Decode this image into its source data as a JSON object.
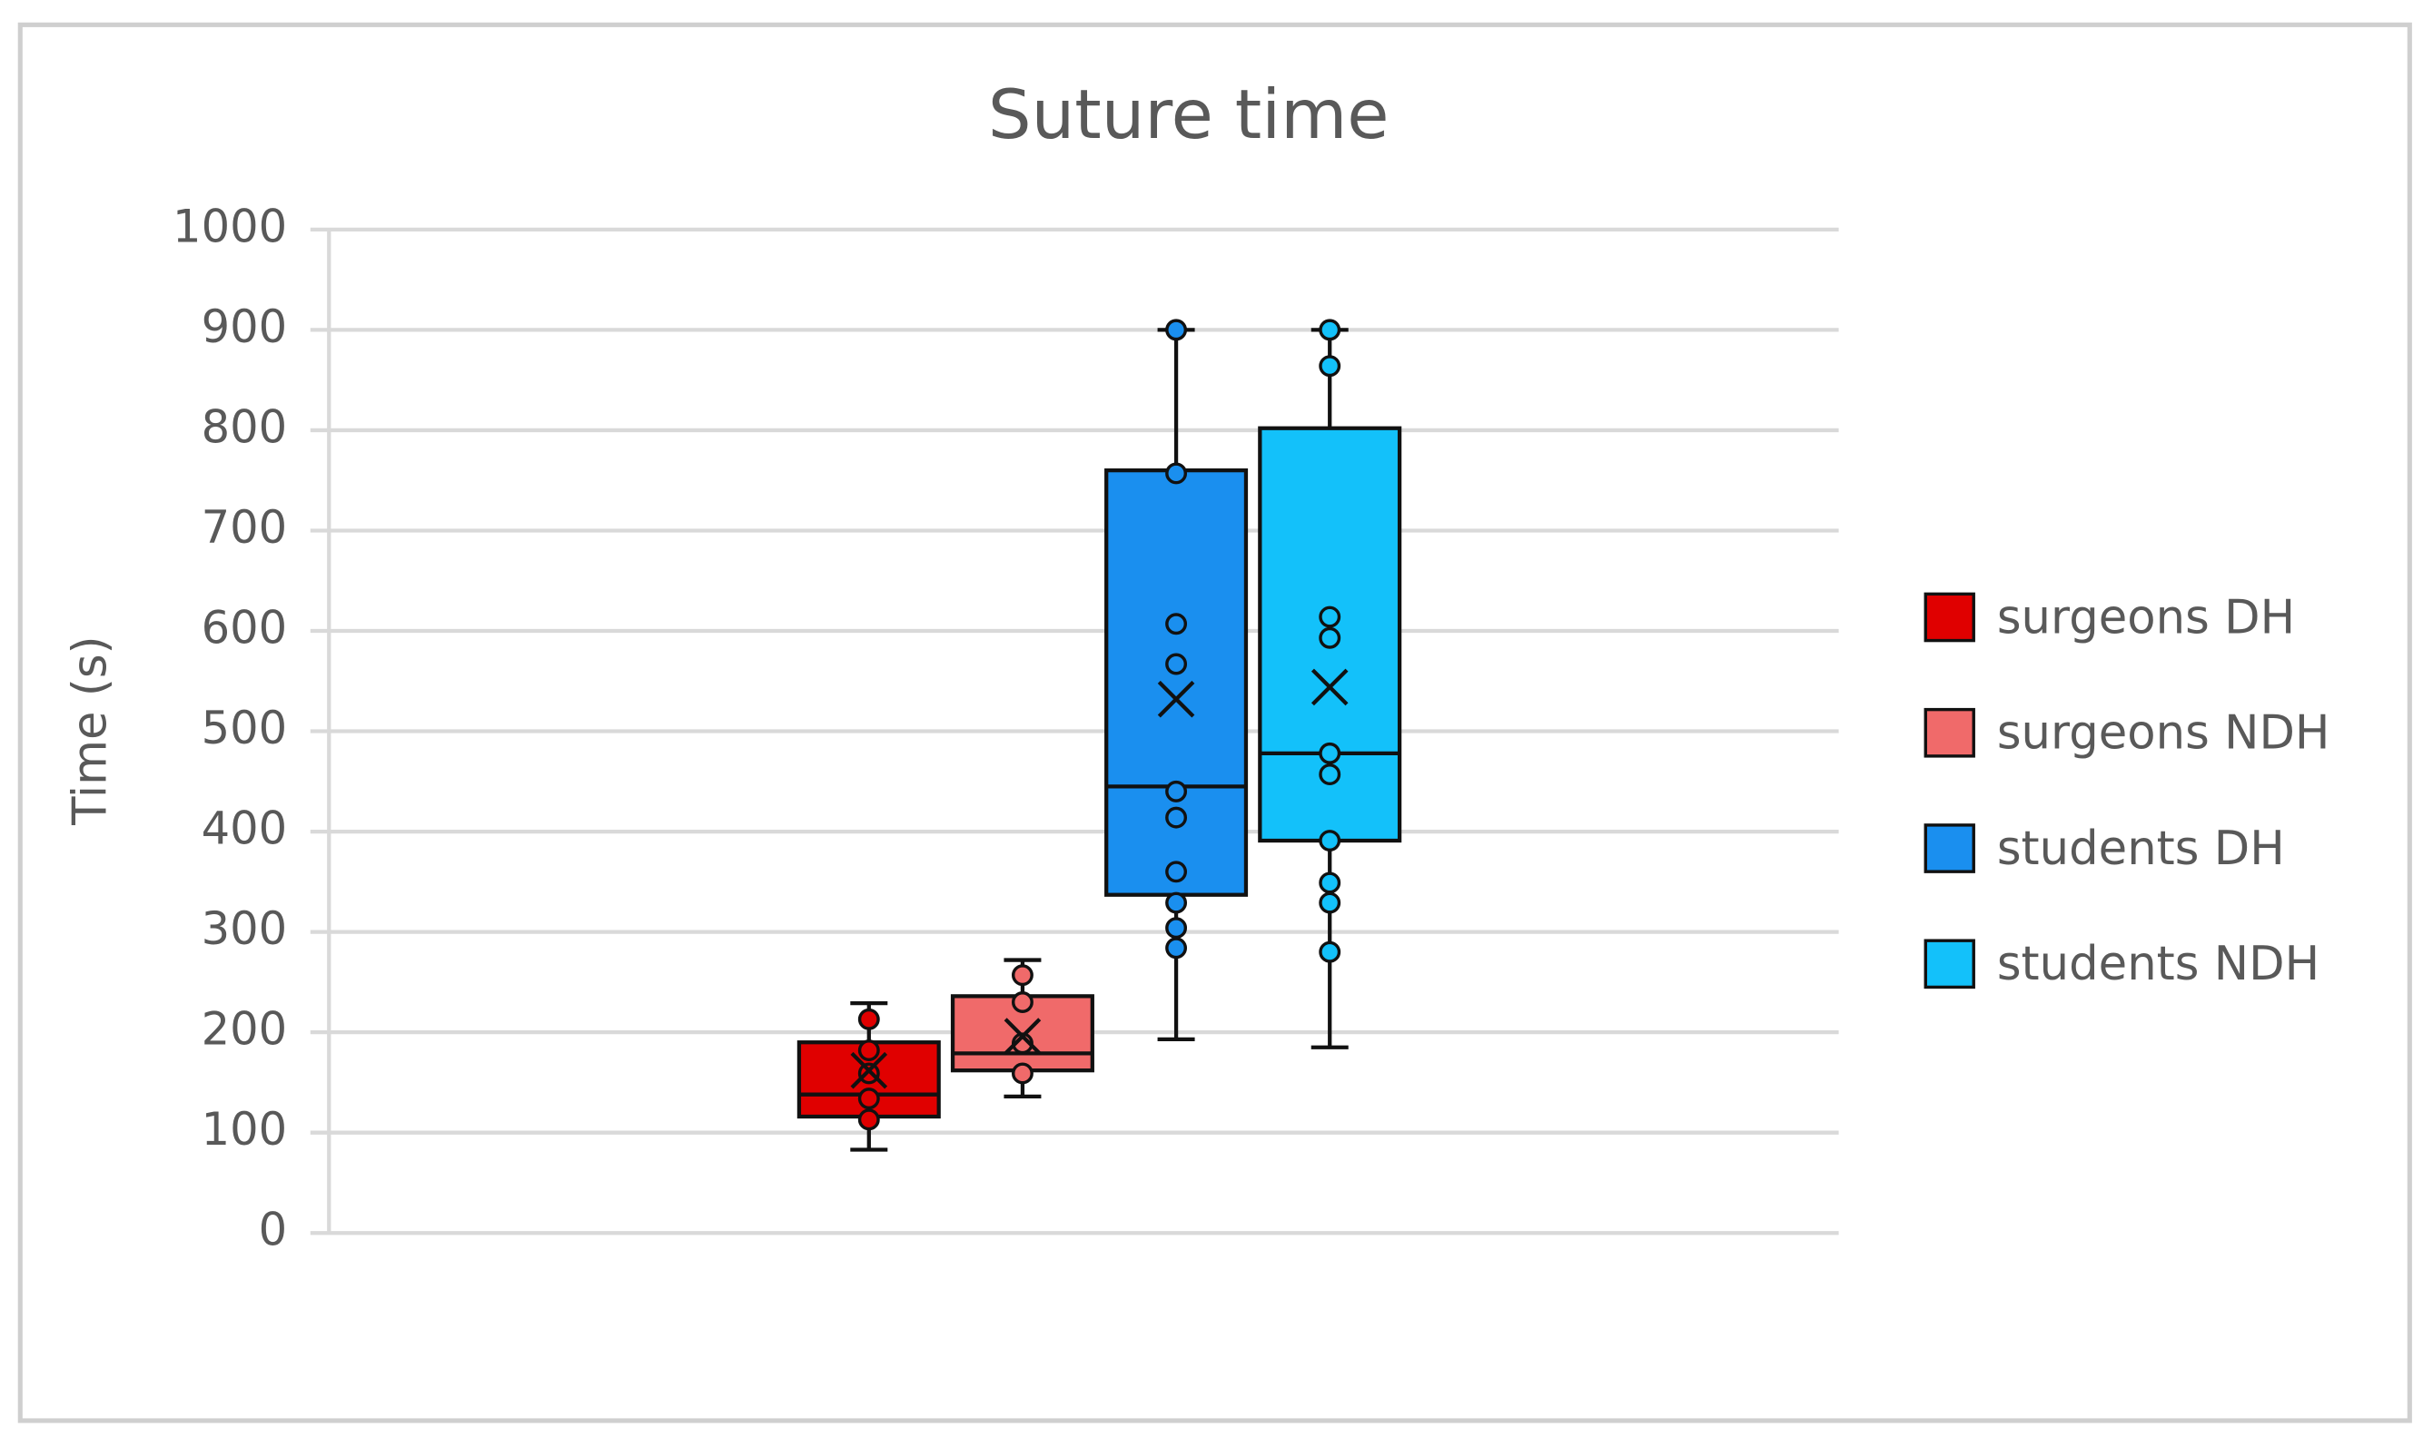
{
  "chart_data": {
    "type": "box",
    "title": "Suture time",
    "y_label": "Time (s)",
    "ylim": [
      0,
      1000
    ],
    "yticks": [
      0,
      100,
      200,
      300,
      400,
      500,
      600,
      700,
      800,
      900,
      1000
    ],
    "grid": true,
    "legend": "right",
    "series": [
      {
        "name": "surgeons DH",
        "color": "#e00000",
        "min": 83,
        "q1": 116,
        "median": 138,
        "q3": 190,
        "max": 229,
        "mean": 162,
        "points": [
          213,
          182,
          159,
          134,
          113
        ]
      },
      {
        "name": "surgeons NDH",
        "color": "#f06a6a",
        "min": 136,
        "q1": 162,
        "median": 179,
        "q3": 236,
        "max": 272,
        "mean": 196,
        "points": [
          257,
          230,
          189,
          159
        ]
      },
      {
        "name": "students DH",
        "color": "#1a8fef",
        "min": 193,
        "q1": 337,
        "median": 445,
        "q3": 760,
        "max": 900,
        "mean": 532,
        "points": [
          900,
          757,
          607,
          567,
          440,
          414,
          360,
          329,
          304,
          284
        ]
      },
      {
        "name": "students NDH",
        "color": "#13c1fa",
        "min": 185,
        "q1": 391,
        "median": 478,
        "q3": 802,
        "max": 900,
        "mean": 544,
        "points": [
          900,
          864,
          614,
          593,
          478,
          457,
          391,
          349,
          329,
          280
        ]
      }
    ]
  }
}
